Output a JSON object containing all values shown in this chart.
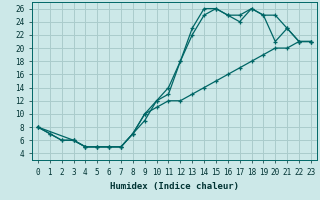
{
  "xlabel": "Humidex (Indice chaleur)",
  "background_color": "#cce8e8",
  "grid_color": "#aacccc",
  "line_color": "#006666",
  "xlim": [
    -0.5,
    23.5
  ],
  "ylim": [
    3.0,
    27.0
  ],
  "xticks": [
    0,
    1,
    2,
    3,
    4,
    5,
    6,
    7,
    8,
    9,
    10,
    11,
    12,
    13,
    14,
    15,
    16,
    17,
    18,
    19,
    20,
    21,
    22,
    23
  ],
  "yticks": [
    4,
    6,
    8,
    10,
    12,
    14,
    16,
    18,
    20,
    22,
    24,
    26
  ],
  "line1_x": [
    0,
    1,
    2,
    3,
    4,
    5,
    6,
    7,
    8,
    9,
    10,
    11,
    12,
    13,
    14,
    15,
    16,
    17,
    18,
    19,
    20,
    21,
    22,
    23
  ],
  "line1_y": [
    8,
    7,
    6,
    6,
    5,
    5,
    5,
    5,
    7,
    10,
    12,
    14,
    18,
    23,
    26,
    26,
    25,
    25,
    26,
    25,
    21,
    23,
    21,
    21
  ],
  "line2_x": [
    0,
    1,
    2,
    3,
    4,
    5,
    6,
    7,
    8,
    9,
    10,
    11,
    12,
    13,
    14,
    15,
    16,
    17,
    18,
    19,
    20,
    21,
    22,
    23
  ],
  "line2_y": [
    8,
    7,
    6,
    6,
    5,
    5,
    5,
    5,
    7,
    9,
    12,
    13,
    18,
    22,
    25,
    26,
    25,
    24,
    26,
    25,
    25,
    23,
    21,
    21
  ],
  "line3_x": [
    0,
    3,
    4,
    5,
    6,
    7,
    8,
    9,
    10,
    11,
    12,
    13,
    14,
    15,
    16,
    17,
    18,
    19,
    20,
    21,
    22,
    23
  ],
  "line3_y": [
    8,
    6,
    5,
    5,
    5,
    5,
    7,
    10,
    11,
    12,
    12,
    13,
    14,
    15,
    16,
    17,
    18,
    19,
    20,
    20,
    21,
    21
  ]
}
